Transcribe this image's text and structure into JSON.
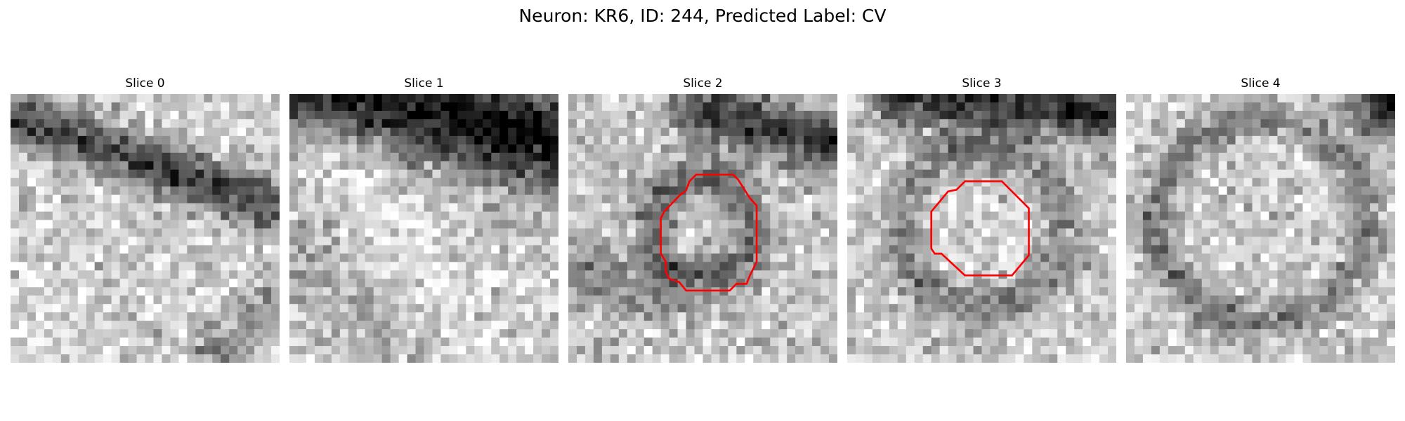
{
  "figure": {
    "suptitle": "Neuron: KR6, ID: 244, Predicted Label: CV"
  },
  "panels": [
    {
      "title": "Slice 0",
      "has_contour": false
    },
    {
      "title": "Slice 1",
      "has_contour": false
    },
    {
      "title": "Slice 2",
      "has_contour": true
    },
    {
      "title": "Slice 3",
      "has_contour": true
    },
    {
      "title": "Slice 4",
      "has_contour": false
    }
  ],
  "colors": {
    "contour": "#ff0000",
    "background": "#ffffff"
  }
}
